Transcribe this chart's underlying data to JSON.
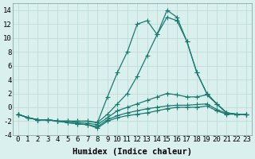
{
  "xlabel": "Humidex (Indice chaleur)",
  "x": [
    0,
    1,
    2,
    3,
    4,
    5,
    6,
    7,
    8,
    9,
    10,
    11,
    12,
    13,
    14,
    15,
    16,
    17,
    18,
    19,
    20,
    21,
    22,
    23
  ],
  "lines": [
    [
      -1.0,
      -1.5,
      -1.8,
      -1.8,
      -2.0,
      -2.2,
      -2.4,
      -2.5,
      -3.0,
      -2.0,
      -1.5,
      -1.2,
      -1.0,
      -0.8,
      -0.5,
      -0.2,
      0.0,
      0.0,
      0.0,
      0.2,
      -0.5,
      -1.0,
      -1.0,
      -1.0
    ],
    [
      -1.0,
      -1.5,
      -1.8,
      -1.8,
      -2.0,
      -2.2,
      -2.4,
      -2.5,
      -2.8,
      -1.8,
      -1.2,
      -0.8,
      -0.5,
      -0.2,
      0.0,
      0.2,
      0.3,
      0.3,
      0.4,
      0.5,
      -0.3,
      -0.9,
      -1.0,
      -1.0
    ],
    [
      -1.0,
      -1.5,
      -1.8,
      -1.8,
      -2.0,
      -2.0,
      -2.2,
      -2.3,
      -2.5,
      -1.5,
      -0.5,
      0.0,
      0.5,
      1.0,
      1.5,
      2.0,
      1.8,
      1.5,
      1.5,
      1.8,
      0.5,
      -0.8,
      -1.0,
      -1.0
    ],
    [
      -1.0,
      -1.5,
      -1.8,
      -1.8,
      -2.0,
      -2.0,
      -2.0,
      -2.0,
      -2.2,
      -1.0,
      0.5,
      2.0,
      4.5,
      7.5,
      10.5,
      13.0,
      12.5,
      9.5,
      5.0,
      2.0,
      0.5,
      -0.8,
      -1.0,
      -1.0
    ],
    [
      -1.0,
      -1.5,
      -1.8,
      -1.8,
      -2.0,
      -2.0,
      -2.0,
      -2.0,
      -2.2,
      1.5,
      5.0,
      8.0,
      12.0,
      12.5,
      10.5,
      14.0,
      13.0,
      9.5,
      5.0,
      2.0,
      0.5,
      -0.8,
      -1.0,
      -1.0
    ]
  ],
  "line_color": "#1a7a6e",
  "marker": "+",
  "marker_size": 4,
  "bg_color": "#daf0ef",
  "grid_color": "#b8d8d5",
  "ylim": [
    -4,
    15
  ],
  "yticks": [
    -4,
    -2,
    0,
    2,
    4,
    6,
    8,
    10,
    12,
    14
  ],
  "xlim": [
    -0.5,
    23.5
  ],
  "xticks": [
    0,
    1,
    2,
    3,
    4,
    5,
    6,
    7,
    8,
    9,
    10,
    11,
    12,
    13,
    14,
    15,
    16,
    17,
    18,
    19,
    20,
    21,
    22,
    23
  ],
  "linewidth": 0.9,
  "tick_fontsize": 6.5,
  "xlabel_fontsize": 7.5
}
